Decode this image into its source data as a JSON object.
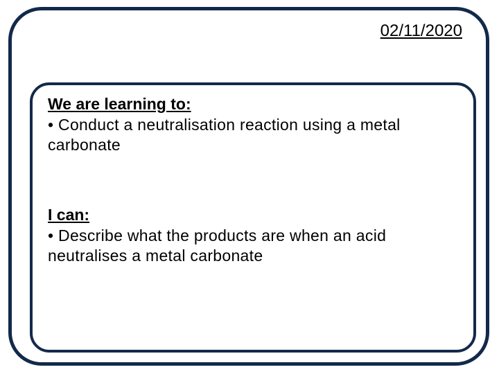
{
  "slide": {
    "date": "02/11/2020",
    "outer_border_color": "#13294b",
    "outer_border_width": 5,
    "outer_border_radius": 48,
    "content_border_color": "#13294b",
    "content_border_width": 4,
    "content_border_radius": 28,
    "background_color": "#ffffff",
    "font_family": "Comic Sans MS",
    "text_color": "#000000",
    "heading_fontsize": 23,
    "body_fontsize": 23,
    "sections": {
      "learning": {
        "heading": "We are learning to:",
        "bullet": "• Conduct a neutralisation reaction using a metal carbonate"
      },
      "can": {
        "heading": "I can:",
        "bullet": "• Describe what the products are when an acid neutralises a metal carbonate"
      }
    }
  }
}
